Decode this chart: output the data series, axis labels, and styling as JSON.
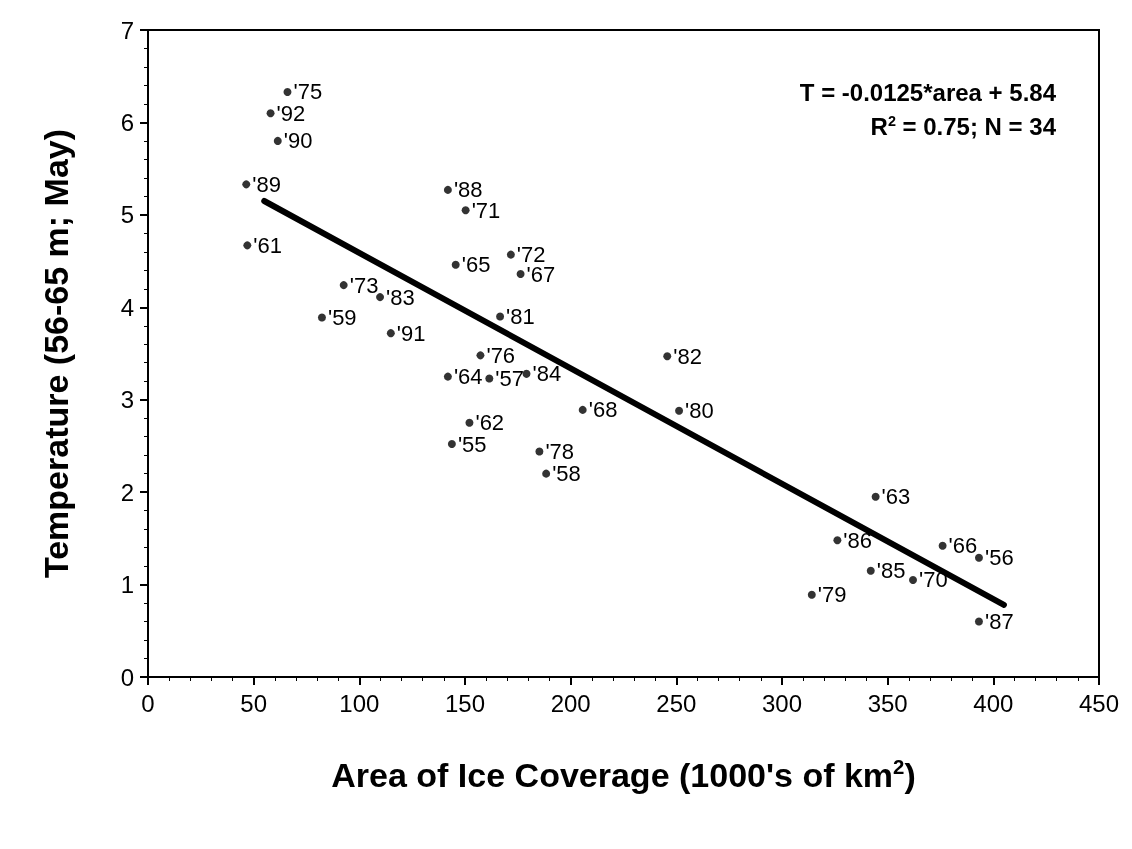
{
  "chart_data": {
    "type": "scatter",
    "xlabel": "Area of Ice Coverage (1000's of km$^{2}$)",
    "ylabel": "Temperature (56-65 m; May)",
    "annotations": [
      "T = -0.0125*area + 5.84",
      "R$^{2}$ = 0.75; N = 34",
      {
        "text": "'75",
        "x": 66,
        "y": 6.33
      },
      {
        "text": "'92",
        "x": 58,
        "y": 6.1
      },
      {
        "text": "'90",
        "x": 61.4,
        "y": 5.8
      },
      {
        "text": "'89",
        "x": 46.5,
        "y": 5.33
      },
      {
        "text": "'61",
        "x": 47,
        "y": 4.67
      },
      {
        "text": "'73",
        "x": 92.6,
        "y": 4.24
      },
      {
        "text": "'83",
        "x": 109.8,
        "y": 4.11
      },
      {
        "text": "'59",
        "x": 82.3,
        "y": 3.89
      },
      {
        "text": "'91",
        "x": 114.9,
        "y": 3.72
      },
      {
        "text": "'88",
        "x": 141.9,
        "y": 5.27
      },
      {
        "text": "'71",
        "x": 150.3,
        "y": 5.05
      },
      {
        "text": "'65",
        "x": 145.6,
        "y": 4.46
      },
      {
        "text": "'72",
        "x": 171.7,
        "y": 4.57
      },
      {
        "text": "'67",
        "x": 176.3,
        "y": 4.36
      },
      {
        "text": "'81",
        "x": 166.6,
        "y": 3.9
      },
      {
        "text": "'76",
        "x": 157.3,
        "y": 3.48
      },
      {
        "text": "'64",
        "x": 141.9,
        "y": 3.25
      },
      {
        "text": "'57",
        "x": 161.5,
        "y": 3.23
      },
      {
        "text": "'84",
        "x": 179.1,
        "y": 3.28
      },
      {
        "text": "'82",
        "x": 245.7,
        "y": 3.47
      },
      {
        "text": "'68",
        "x": 205.7,
        "y": 2.89
      },
      {
        "text": "'80",
        "x": 251.3,
        "y": 2.88
      },
      {
        "text": "'62",
        "x": 152.1,
        "y": 2.75
      },
      {
        "text": "'55",
        "x": 143.8,
        "y": 2.52
      },
      {
        "text": "'78",
        "x": 185.2,
        "y": 2.44
      },
      {
        "text": "'58",
        "x": 188.4,
        "y": 2.2
      },
      {
        "text": "'63",
        "x": 344.3,
        "y": 1.95
      },
      {
        "text": "'86",
        "x": 326.2,
        "y": 1.48
      },
      {
        "text": "'85",
        "x": 342,
        "y": 1.15
      },
      {
        "text": "'70",
        "x": 362,
        "y": 1.05
      },
      {
        "text": "'66",
        "x": 376,
        "y": 1.42
      },
      {
        "text": "'56",
        "x": 393.2,
        "y": 1.29
      },
      {
        "text": "'87",
        "x": 393.2,
        "y": 0.6
      },
      {
        "text": "'79",
        "x": 314.1,
        "y": 0.89
      }
    ],
    "xlim": [
      0,
      450
    ],
    "xticks": [
      0,
      50,
      100,
      150,
      200,
      250,
      300,
      350,
      400,
      450
    ],
    "ylim": [
      0,
      7
    ],
    "yticks": [
      0,
      1,
      2,
      3,
      4,
      5,
      6,
      7
    ],
    "grid": false,
    "series": [
      {
        "marker": "circle",
        "color": "#000000",
        "x": [
          66,
          58,
          61.4,
          46.5,
          47,
          92.6,
          109.8,
          82.3,
          114.9,
          141.9,
          150.3,
          145.6,
          171.7,
          176.3,
          166.6,
          157.3,
          141.9,
          161.5,
          179.1,
          245.7,
          205.7,
          251.3,
          152.1,
          143.8,
          185.2,
          188.4,
          344.3,
          326.2,
          342,
          362,
          376,
          393.2,
          393.2,
          314.1
        ],
        "values": [
          6.33,
          6.1,
          5.8,
          5.33,
          4.67,
          4.24,
          4.11,
          3.89,
          3.72,
          5.27,
          5.05,
          4.46,
          4.57,
          4.36,
          3.9,
          3.48,
          3.25,
          3.23,
          3.28,
          3.47,
          2.89,
          2.88,
          2.75,
          2.52,
          2.44,
          2.2,
          1.95,
          1.48,
          1.15,
          1.05,
          1.42,
          1.29,
          0.6,
          0.89
        ]
      },
      {
        "type": "line",
        "marker": "none",
        "line_style": "solid",
        "color": "#000000",
        "x": [
          55,
          405
        ],
        "values": [
          5.15,
          0.78
        ]
      }
    ]
  }
}
